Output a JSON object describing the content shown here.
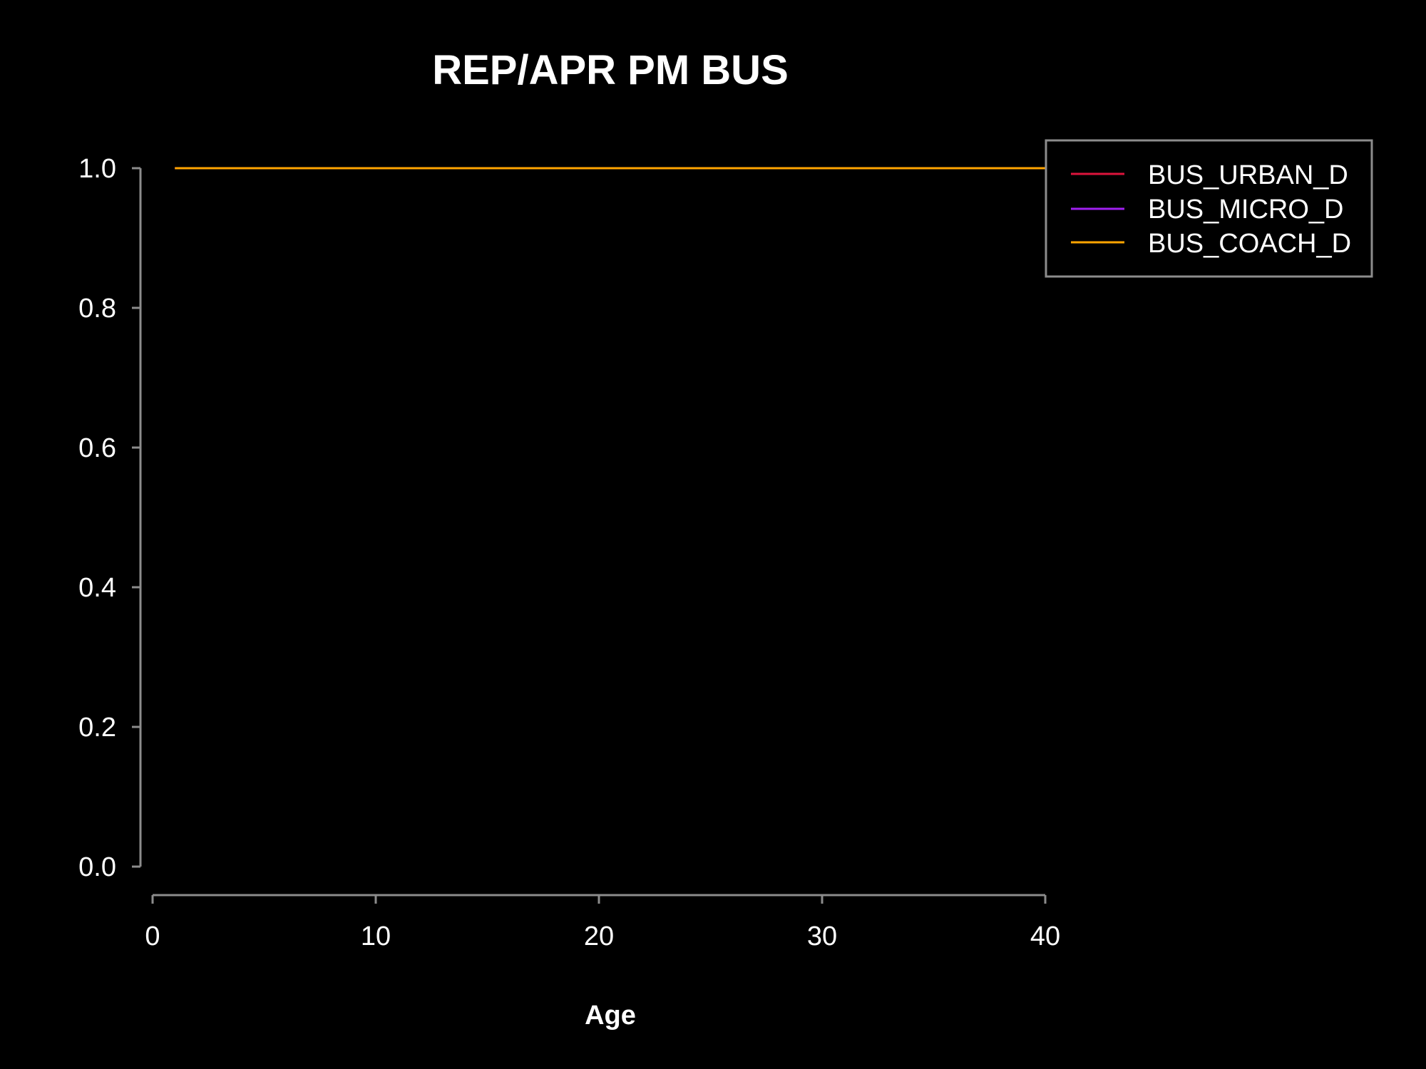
{
  "chart_data": {
    "type": "line",
    "title": "REP/APR PM BUS",
    "xlabel": "Age",
    "ylabel": "",
    "xlim": [
      0,
      40
    ],
    "ylim": [
      0,
      1
    ],
    "x_ticks": [
      0,
      10,
      20,
      30,
      40
    ],
    "x_tick_labels": [
      "0",
      "10",
      "20",
      "30",
      "40"
    ],
    "y_ticks": [
      0,
      0.2,
      0.4,
      0.6,
      0.8,
      1.0
    ],
    "y_tick_labels": [
      "0.0",
      "0.2",
      "0.4",
      "0.6",
      "0.8",
      "1.0"
    ],
    "grid": false,
    "legend_position": "top-right",
    "series": [
      {
        "name": "BUS_URBAN_D",
        "color": "#dc143c",
        "x": [
          1,
          40
        ],
        "y": [
          1.0,
          1.0
        ]
      },
      {
        "name": "BUS_MICRO_D",
        "color": "#a020f0",
        "x": [
          1,
          40
        ],
        "y": [
          1.0,
          1.0
        ]
      },
      {
        "name": "BUS_COACH_D",
        "color": "#ffa500",
        "x": [
          1,
          40
        ],
        "y": [
          1.0,
          1.0
        ]
      }
    ]
  }
}
